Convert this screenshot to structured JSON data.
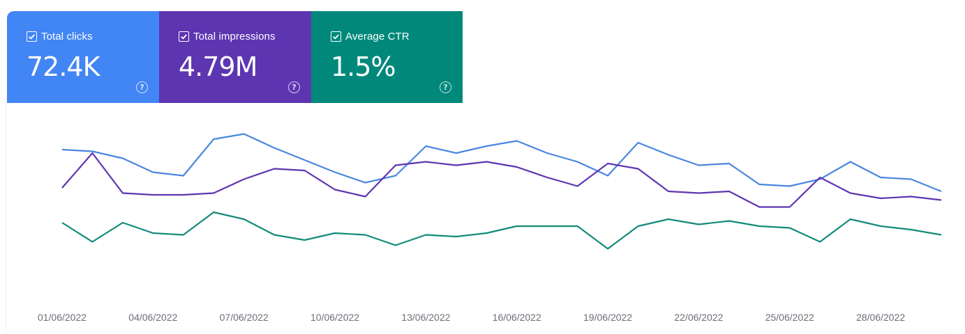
{
  "metrics": [
    {
      "label": "Total clicks",
      "value": "72.4K",
      "color": "#4285f4",
      "icon": "checkbox-checked-icon",
      "help_icon": "help-icon",
      "help_glyph": "?"
    },
    {
      "label": "Total impressions",
      "value": "4.79M",
      "color": "#5e35b1",
      "icon": "checkbox-checked-icon",
      "help_icon": "help-icon",
      "help_glyph": "?"
    },
    {
      "label": "Average CTR",
      "value": "1.5%",
      "color": "#00897b",
      "icon": "checkbox-checked-icon",
      "help_icon": "help-icon",
      "help_glyph": "?"
    }
  ],
  "chart_data": {
    "type": "line",
    "x": [
      "01/06/2022",
      "02/06/2022",
      "03/06/2022",
      "04/06/2022",
      "05/06/2022",
      "06/06/2022",
      "07/06/2022",
      "08/06/2022",
      "09/06/2022",
      "10/06/2022",
      "11/06/2022",
      "12/06/2022",
      "13/06/2022",
      "14/06/2022",
      "15/06/2022",
      "16/06/2022",
      "17/06/2022",
      "18/06/2022",
      "19/06/2022",
      "20/06/2022",
      "21/06/2022",
      "22/06/2022",
      "23/06/2022",
      "24/06/2022",
      "25/06/2022",
      "26/06/2022",
      "27/06/2022",
      "28/06/2022",
      "29/06/2022",
      "30/06/2022"
    ],
    "tick_labels": [
      "01/06/2022",
      "04/06/2022",
      "07/06/2022",
      "10/06/2022",
      "13/06/2022",
      "16/06/2022",
      "19/06/2022",
      "22/06/2022",
      "25/06/2022",
      "28/06/2022"
    ],
    "series": [
      {
        "color": "#4a86e0",
        "values": [
          0.86,
          0.85,
          0.81,
          0.73,
          0.71,
          0.92,
          0.95,
          0.87,
          0.8,
          0.73,
          0.67,
          0.71,
          0.88,
          0.84,
          0.88,
          0.91,
          0.84,
          0.79,
          0.71,
          0.9,
          0.83,
          0.77,
          0.78,
          0.66,
          0.65,
          0.69,
          0.79,
          0.7,
          0.69,
          0.62
        ]
      },
      {
        "color": "#5e35b1",
        "values": [
          0.64,
          0.84,
          0.61,
          0.6,
          0.6,
          0.61,
          0.69,
          0.75,
          0.74,
          0.63,
          0.59,
          0.77,
          0.79,
          0.77,
          0.79,
          0.76,
          0.7,
          0.65,
          0.78,
          0.75,
          0.62,
          0.61,
          0.62,
          0.53,
          0.53,
          0.7,
          0.61,
          0.58,
          0.59,
          0.57
        ]
      },
      {
        "color": "#128a7a",
        "values": [
          0.44,
          0.33,
          0.44,
          0.38,
          0.37,
          0.5,
          0.46,
          0.37,
          0.34,
          0.38,
          0.37,
          0.31,
          0.37,
          0.36,
          0.38,
          0.42,
          0.42,
          0.42,
          0.29,
          0.42,
          0.46,
          0.43,
          0.45,
          0.42,
          0.41,
          0.33,
          0.46,
          0.42,
          0.4,
          0.37
        ]
      }
    ],
    "grid": false,
    "legend": "none"
  }
}
